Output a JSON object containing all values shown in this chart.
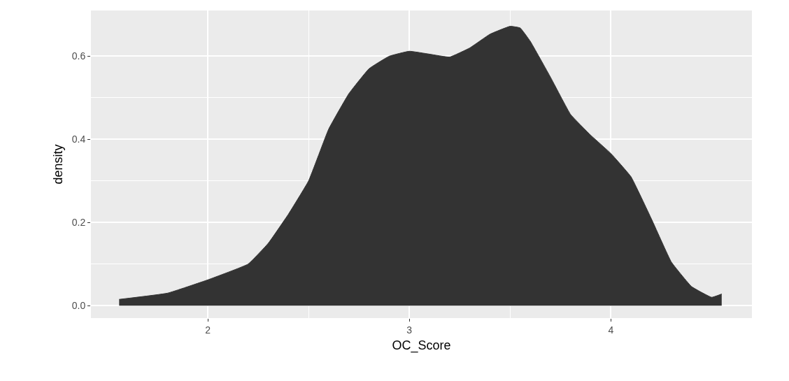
{
  "chart_data": {
    "type": "area",
    "xlabel": "OC_Score",
    "ylabel": "density",
    "x": [
      1.56,
      1.8,
      2.0,
      2.2,
      2.3,
      2.4,
      2.5,
      2.6,
      2.7,
      2.8,
      2.9,
      3.0,
      3.1,
      3.2,
      3.3,
      3.4,
      3.5,
      3.55,
      3.6,
      3.7,
      3.8,
      3.9,
      4.0,
      4.1,
      4.2,
      4.3,
      4.4,
      4.5,
      4.55
    ],
    "series": [
      {
        "color": "#333333",
        "values": [
          0.015,
          0.03,
          0.062,
          0.1,
          0.15,
          0.22,
          0.3,
          0.425,
          0.51,
          0.57,
          0.6,
          0.612,
          0.605,
          0.598,
          0.62,
          0.653,
          0.672,
          0.668,
          0.636,
          0.55,
          0.46,
          0.41,
          0.366,
          0.31,
          0.21,
          0.105,
          0.046,
          0.02,
          0.028
        ]
      }
    ],
    "xlim": [
      1.42,
      4.7
    ],
    "ylim": [
      -0.03,
      0.71
    ],
    "xticks": [
      2,
      3,
      4
    ],
    "yticks": [
      {
        "value": 0,
        "label": "0.0"
      },
      {
        "value": 0.2,
        "label": "0.2"
      },
      {
        "value": 0.4,
        "label": "0.4"
      },
      {
        "value": 0.6,
        "label": "0.6"
      }
    ],
    "grid": true
  }
}
